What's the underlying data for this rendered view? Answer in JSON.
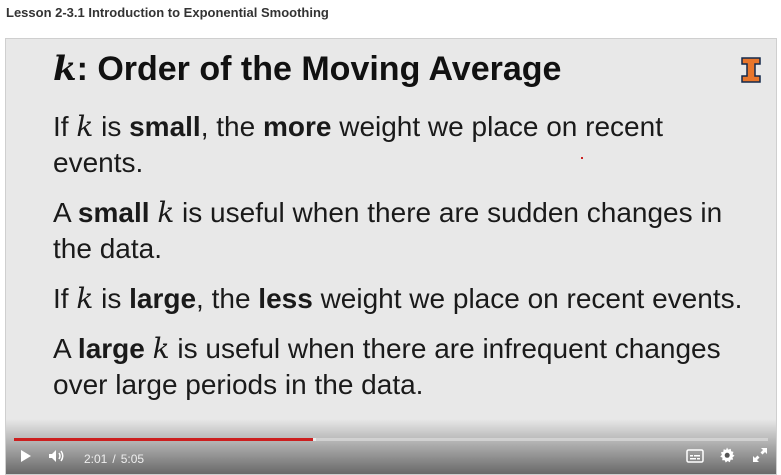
{
  "header": {
    "lesson_title": "Lesson 2-3.1 Introduction to Exponential Smoothing"
  },
  "slide": {
    "title_var": "k",
    "title_rest": ": Order of the Moving Average",
    "logo": "illinois-i-logo",
    "paragraphs": [
      {
        "p1": "If ",
        "var": "k",
        "p2": " is ",
        "b1": "small",
        "p3": ", the ",
        "b2": "more",
        "p4": " weight we place on recent events."
      },
      {
        "p1": "A ",
        "b1": "small",
        "p2": " ",
        "var": "k",
        "p3": " is useful when there are sudden changes in the data."
      },
      {
        "p1": "If ",
        "var": "k",
        "p2": " is ",
        "b1": "large",
        "p3": ", the ",
        "b2": "less",
        "p4": " weight we place on recent events."
      },
      {
        "p1": "A ",
        "b1": "large",
        "p2": " ",
        "var": "k",
        "p3": " is useful when there are infrequent changes over large periods in the data."
      }
    ]
  },
  "player": {
    "current_time": "2:01",
    "separator": "/",
    "duration": "5:05",
    "progress_fraction": 0.396,
    "buffered_fraction": 0.4,
    "icons": {
      "play": "play-icon",
      "volume": "volume-icon",
      "captions": "captions-icon",
      "settings": "gear-icon",
      "fullscreen": "fullscreen-icon"
    },
    "accent_color": "#cc1f1f"
  }
}
